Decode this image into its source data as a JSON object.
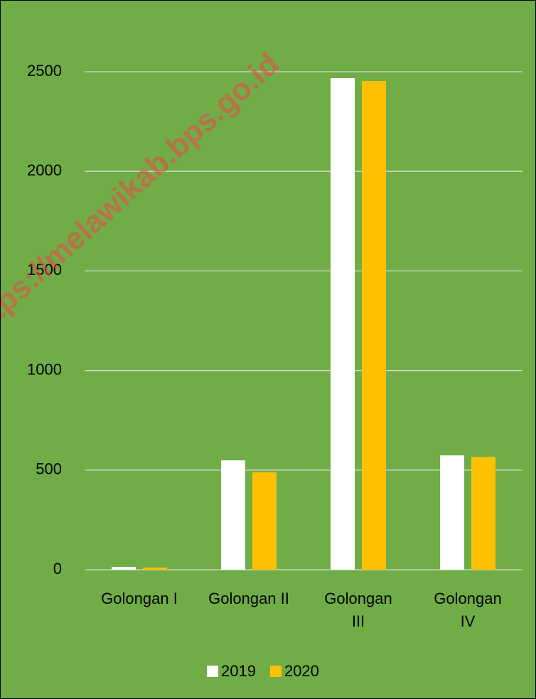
{
  "chart_data": {
    "type": "bar",
    "categories": [
      "Golongan I",
      "Golongan II",
      "Golongan III",
      "Golongan IV"
    ],
    "series": [
      {
        "name": "2019",
        "color": "#ffffff",
        "values": [
          14,
          549,
          2468,
          574
        ]
      },
      {
        "name": "2020",
        "color": "#ffc000",
        "values": [
          11,
          489,
          2454,
          567
        ]
      }
    ],
    "ylim": [
      0,
      2500
    ],
    "yticks": [
      0,
      500,
      1000,
      1500,
      2000,
      2500
    ],
    "grid": true,
    "legend": "bottom",
    "watermark": "https://melawikab.bps.go.id"
  }
}
